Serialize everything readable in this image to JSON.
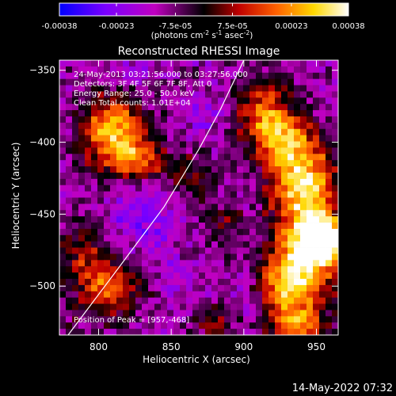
{
  "chart_data": {
    "type": "heatmap",
    "title": "Reconstructed RHESSI Image",
    "xlabel": "Heliocentric X (arcsec)",
    "ylabel": "Heliocentric Y (arcsec)",
    "xlim": [
      773,
      965
    ],
    "ylim": [
      -534,
      -343
    ],
    "xticks": [
      800,
      850,
      900,
      950
    ],
    "yticks": [
      -350,
      -400,
      -450,
      -500
    ],
    "colorbar": {
      "range": [
        -0.00038,
        0.00038
      ],
      "tick_values": [
        -0.00038,
        -0.00023,
        -7.5e-05,
        7.5e-05,
        0.00023,
        0.00038
      ],
      "tick_labels": [
        "-0.00038",
        "-0.00023",
        "-7.5e-05",
        "7.5e-05",
        "0.00023",
        "0.00038"
      ],
      "units_label": "(photons cm^-2 s^-1 asec^-2)",
      "colors": [
        "#0000ff",
        "#7a00ff",
        "#c000c0",
        "#000000",
        "#c00000",
        "#ff6000",
        "#ffd800",
        "#ffffff"
      ]
    },
    "annotations": [
      "24-May-2013 03:21:56.000 to 03:27:56.000",
      "Detectors: 3F 4F 5F 6F 7F 8F, Att 0",
      "Energy Range: 25.0 - 50.0 keV",
      "Clean     Total counts: 1.01E+04",
      "Position of Peak = [957,-468]"
    ],
    "limb_line": [
      {
        "x": 779,
        "y": -534
      },
      {
        "x": 814,
        "y": -487
      },
      {
        "x": 845,
        "y": -445
      },
      {
        "x": 869,
        "y": -405
      },
      {
        "x": 884,
        "y": -377
      },
      {
        "x": 900,
        "y": -343
      }
    ],
    "emission_regions": [
      {
        "x": 810,
        "y": -393,
        "sx": 15,
        "sy": 18,
        "amp": 1.35
      },
      {
        "x": 830,
        "y": -413,
        "sx": 12,
        "sy": 11,
        "amp": 0.85
      },
      {
        "x": 805,
        "y": -500,
        "sx": 16,
        "sy": 14,
        "amp": 1.0
      },
      {
        "x": 789,
        "y": -475,
        "sx": 10,
        "sy": 12,
        "amp": 0.55
      },
      {
        "x": 862,
        "y": -426,
        "sx": 12,
        "sy": 12,
        "amp": 0.55
      },
      {
        "x": 912,
        "y": -375,
        "sx": 12,
        "sy": 16,
        "amp": 0.75
      },
      {
        "x": 924,
        "y": -395,
        "sx": 14,
        "sy": 14,
        "amp": 0.95
      },
      {
        "x": 940,
        "y": -425,
        "sx": 15,
        "sy": 22,
        "amp": 1.25
      },
      {
        "x": 947,
        "y": -470,
        "sx": 13,
        "sy": 18,
        "amp": 1.55
      },
      {
        "x": 931,
        "y": -500,
        "sx": 15,
        "sy": 18,
        "amp": 1.1
      },
      {
        "x": 956,
        "y": -468,
        "sx": 7,
        "sy": 8,
        "amp": 1.7
      },
      {
        "x": 938,
        "y": -530,
        "sx": 13,
        "sy": 9,
        "amp": 0.95
      },
      {
        "x": 880,
        "y": -525,
        "sx": 10,
        "sy": 8,
        "amp": 0.55
      },
      {
        "x": 888,
        "y": -456,
        "sx": 9,
        "sy": 10,
        "amp": 0.45
      }
    ],
    "negative_regions": [
      {
        "x": 832,
        "y": -448,
        "sx": 16,
        "sy": 20,
        "amp": 0.85
      },
      {
        "x": 870,
        "y": -380,
        "sx": 10,
        "sy": 10,
        "amp": 0.6
      },
      {
        "x": 821,
        "y": -352,
        "sx": 10,
        "sy": 8,
        "amp": 0.55
      },
      {
        "x": 853,
        "y": -496,
        "sx": 10,
        "sy": 10,
        "amp": 0.45
      },
      {
        "x": 902,
        "y": -510,
        "sx": 10,
        "sy": 10,
        "amp": 0.35
      }
    ]
  },
  "footer": {
    "datetime": "14-May-2022 07:32"
  }
}
